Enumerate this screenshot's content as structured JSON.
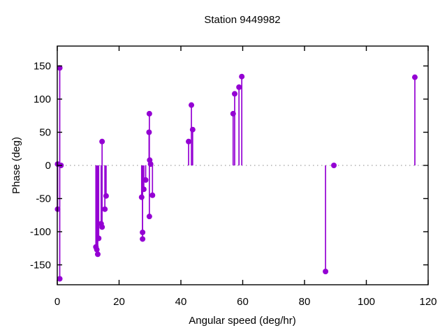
{
  "title": "Station 9449982",
  "colors": {
    "series": "#9400d3",
    "zero_line": "#8a8a8a",
    "axis": "#000000",
    "background": "#ffffff",
    "text": "#000000"
  },
  "chart_data": {
    "type": "stem",
    "title": "Station 9449982",
    "xlabel": "Angular speed (deg/hr)",
    "ylabel": "Phase (deg)",
    "xlim": [
      0,
      120
    ],
    "ylim": [
      -180,
      180
    ],
    "x_ticks": [
      0,
      20,
      40,
      60,
      80,
      100,
      120
    ],
    "y_ticks": [
      -150,
      -100,
      -50,
      0,
      50,
      100,
      150
    ],
    "grid": false,
    "zero_line_dotted": true,
    "legend": "none",
    "marker": "filled-circle",
    "stem_baseline": 0,
    "points": [
      {
        "x": 0.1,
        "y": 2
      },
      {
        "x": 0.1,
        "y": -66
      },
      {
        "x": 0.8,
        "y": 147
      },
      {
        "x": 0.8,
        "y": -171
      },
      {
        "x": 1.2,
        "y": 0
      },
      {
        "x": 12.5,
        "y": -123
      },
      {
        "x": 12.8,
        "y": -127
      },
      {
        "x": 13.1,
        "y": -134
      },
      {
        "x": 13.4,
        "y": -110
      },
      {
        "x": 14.2,
        "y": -88
      },
      {
        "x": 14.5,
        "y": 36
      },
      {
        "x": 14.5,
        "y": -93
      },
      {
        "x": 15.4,
        "y": -66
      },
      {
        "x": 15.8,
        "y": -46
      },
      {
        "x": 27.3,
        "y": -48
      },
      {
        "x": 27.6,
        "y": -101
      },
      {
        "x": 27.6,
        "y": -111
      },
      {
        "x": 28.0,
        "y": -36
      },
      {
        "x": 28.6,
        "y": -22
      },
      {
        "x": 29.7,
        "y": 50
      },
      {
        "x": 29.8,
        "y": 78
      },
      {
        "x": 29.8,
        "y": -77
      },
      {
        "x": 29.9,
        "y": 8
      },
      {
        "x": 30.2,
        "y": 2
      },
      {
        "x": 30.8,
        "y": -45
      },
      {
        "x": 42.5,
        "y": 36
      },
      {
        "x": 43.4,
        "y": 91
      },
      {
        "x": 43.8,
        "y": 54
      },
      {
        "x": 56.9,
        "y": 78
      },
      {
        "x": 57.4,
        "y": 108
      },
      {
        "x": 58.8,
        "y": 118
      },
      {
        "x": 59.7,
        "y": 134
      },
      {
        "x": 86.8,
        "y": -160
      },
      {
        "x": 89.5,
        "y": 0
      },
      {
        "x": 115.7,
        "y": 133
      }
    ]
  }
}
